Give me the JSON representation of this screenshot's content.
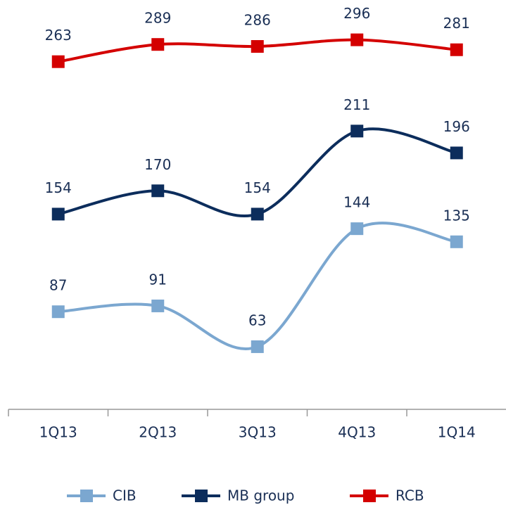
{
  "chart_data": {
    "type": "line",
    "categories": [
      "1Q13",
      "2Q13",
      "3Q13",
      "4Q13",
      "1Q14"
    ],
    "series": [
      {
        "name": "CIB",
        "color": "#7ba7d0",
        "values": [
          87,
          91,
          63,
          144,
          135
        ]
      },
      {
        "name": "MB group",
        "color": "#0c2d5c",
        "values": [
          154,
          170,
          154,
          211,
          196
        ]
      },
      {
        "name": "RCB",
        "color": "#d40000",
        "values": [
          263,
          289,
          286,
          296,
          281
        ],
        "axis": "y2"
      }
    ],
    "ylim": [
      20,
      300
    ],
    "y2lim": [
      -262,
      354
    ],
    "legend": "bottom",
    "grid": false
  }
}
